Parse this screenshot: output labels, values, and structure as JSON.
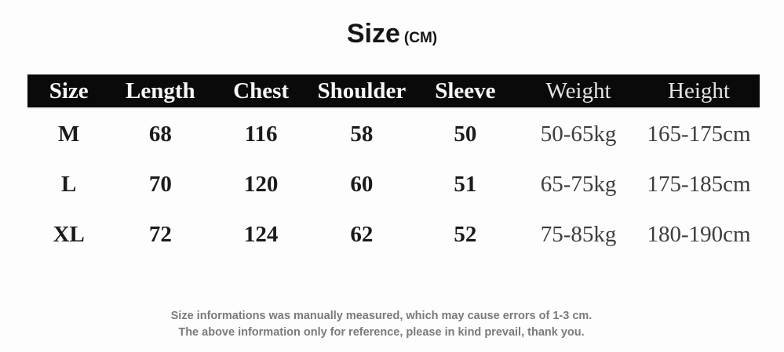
{
  "title": {
    "main": "Size",
    "unit": "(CM)"
  },
  "table": {
    "headers": [
      {
        "label": "Size"
      },
      {
        "label": "Length"
      },
      {
        "label": "Chest"
      },
      {
        "label": "Shoulder"
      },
      {
        "label": "Sleeve"
      },
      {
        "label": "Weight"
      },
      {
        "label": "Height"
      }
    ],
    "rows": [
      [
        "M",
        "68",
        "116",
        "58",
        "50",
        "50-65kg",
        "165-175cm"
      ],
      [
        "L",
        "70",
        "120",
        "60",
        "51",
        "65-75kg",
        "175-185cm"
      ],
      [
        "XL",
        "72",
        "124",
        "62",
        "52",
        "75-85kg",
        "180-190cm"
      ]
    ]
  },
  "footer": {
    "line1": "Size informations was manually measured, which may cause errors of 1-3 cm.",
    "line2": "The above information only for reference, please in kind prevail, thank you."
  },
  "colors": {
    "header_bg": "#0a0a0a",
    "header_text": "#f7f7f7",
    "data_text": "#1b1b1b",
    "muted_text": "#3d3d3d",
    "footer_text": "#7a7a7a",
    "background": "#fdfdfd"
  }
}
